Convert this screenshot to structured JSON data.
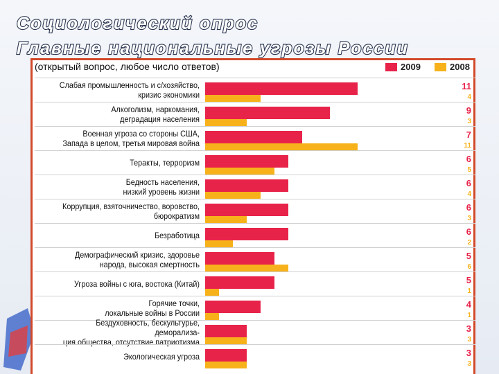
{
  "title": [
    "Социологический опрос",
    "Главные национальные угрозы России"
  ],
  "chart_data": {
    "type": "barh",
    "subtitle": "(открытый вопрос, любое число ответов)",
    "categories": [
      "Слабая промышленность и с/хозяйство,\nкризис экономики",
      "Алкоголизм, наркомания,\nдеградация населения",
      "Военная угроза со стороны США,\nЗапада в целом, третья мировая война",
      "Теракты, терроризм",
      "Бедность населения,\nнизкий уровень жизни",
      "Коррупция,  взяточничество, воровство,\nбюрократизм",
      "Безработица",
      "Демографический кризис, здоровье\nнарода, высокая смертность",
      "Угроза войны с юга, востока (Китай)",
      "Горячие точки,\nлокальные войны в России",
      "Бездуховность, бескультурье, деморализа-\nция общества, отсутствие патриотизма",
      "Экологическая угроза"
    ],
    "series": [
      {
        "name": "2009",
        "color": "#e8234a",
        "values": [
          11,
          9,
          7,
          6,
          6,
          6,
          6,
          5,
          5,
          4,
          3,
          3
        ]
      },
      {
        "name": "2008",
        "color": "#f7b21b",
        "values": [
          4,
          3,
          11,
          5,
          4,
          3,
          2,
          6,
          1,
          1,
          3,
          3
        ]
      }
    ]
  }
}
